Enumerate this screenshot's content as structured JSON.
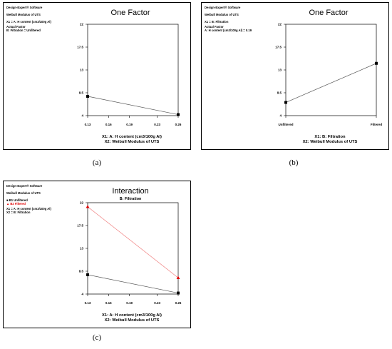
{
  "panels": [
    {
      "id": "a",
      "caption": "(a)",
      "software": "Design-Expert® Software",
      "response": "Weibull Modulus of UTS",
      "x1_def": "X1 = A: H content (cm3/100g Al)",
      "actual_factor_heading": "Actual Factor",
      "actual_factor_value": "B: Filtration = Unfiltered",
      "title": "One Factor",
      "xlabel1": "X1: A: H content (cm3/100g Al)",
      "xlabel2": "X2: Weibull Modulus of UTS"
    },
    {
      "id": "b",
      "caption": "(b)",
      "software": "Design-Expert® Software",
      "response": "Weibull Modulus of UTS",
      "x1_def": "X1 = B: Filtration",
      "actual_factor_heading": "Actual Factor",
      "actual_factor_value": "A: H content (cm3/100g Al) = 0.19",
      "title": "One Factor",
      "xlabel1": "X1: B: Filtration",
      "xlabel2": "X2: Weibull Modulus of UTS"
    },
    {
      "id": "c",
      "caption": "(c)",
      "software": "Design-Expert® Software",
      "response": "Weibull Modulus of UTS",
      "legend": [
        "B1 Unfiltered",
        "B2 Filtered"
      ],
      "x1_def": "X1 = A: H content (cm3/100g Al)",
      "x2_def": "X2 = B: Filtration",
      "title": "Interaction",
      "subtitle": "B: Filtration",
      "xlabel1": "X1: A: H content (cm3/100g Al)",
      "xlabel2": "X2: Weibull Modulus of UTS"
    }
  ],
  "colors": {
    "black": "#000000",
    "red": "#e00000",
    "red_line": "#f08080",
    "line": "#555555"
  },
  "chart_data": [
    {
      "type": "line",
      "title": "One Factor",
      "xlabel": "X1: A: H content (cm3/100g Al)",
      "ylabel": "",
      "x_ticks": [
        "0.13",
        "0.16",
        "0.19",
        "0.23",
        "0.26"
      ],
      "y_ticks": [
        "4",
        "8.5",
        "13",
        "17.5",
        "22"
      ],
      "xlim": [
        0.13,
        0.26
      ],
      "ylim": [
        4,
        22
      ],
      "series": [
        {
          "x": [
            0.13,
            0.26
          ],
          "y": [
            7.8,
            4.2
          ],
          "marker": "square"
        }
      ]
    },
    {
      "type": "line",
      "title": "One Factor",
      "xlabel": "X1: B: Filtration",
      "ylabel": "",
      "categories": [
        "Unfiltered",
        "Filtered"
      ],
      "y_ticks": [
        "4",
        "8.5",
        "13",
        "17.5",
        "22"
      ],
      "ylim": [
        4,
        22
      ],
      "series": [
        {
          "values": [
            6.6,
            14.3
          ],
          "marker": "square"
        }
      ]
    },
    {
      "type": "line",
      "title": "Interaction",
      "subtitle": "B: Filtration",
      "xlabel": "X1: A: H content (cm3/100g Al)",
      "ylabel": "",
      "x_ticks": [
        "0.13",
        "0.16",
        "0.19",
        "0.23",
        "0.26"
      ],
      "y_ticks": [
        "4",
        "8.5",
        "13",
        "17.5",
        "22"
      ],
      "xlim": [
        0.13,
        0.26
      ],
      "ylim": [
        4,
        22
      ],
      "series": [
        {
          "name": "B1 Unfiltered",
          "x": [
            0.13,
            0.26
          ],
          "y": [
            7.8,
            4.2
          ],
          "marker": "square",
          "color": "#000000"
        },
        {
          "name": "B2 Filtered",
          "x": [
            0.13,
            0.26
          ],
          "y": [
            21.2,
            7.2
          ],
          "marker": "triangle",
          "color": "#e00000"
        }
      ]
    }
  ]
}
